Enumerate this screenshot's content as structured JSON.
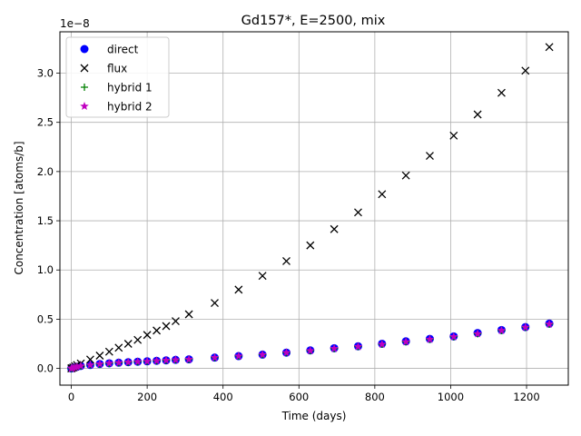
{
  "chart_data": {
    "type": "scatter",
    "title": "Gd157*, E=2500, mix",
    "xlabel": "Time (days)",
    "ylabel": "Concentration [atoms/b]",
    "y_offset_label": "1e−8",
    "xlim": [
      -30,
      1310
    ],
    "ylim": [
      -0.17,
      3.42
    ],
    "x_ticks": [
      0,
      200,
      400,
      600,
      800,
      1000,
      1200
    ],
    "y_ticks": [
      0.0,
      0.5,
      1.0,
      1.5,
      2.0,
      2.5,
      3.0
    ],
    "x_tick_labels": [
      "0",
      "200",
      "400",
      "600",
      "800",
      "1000",
      "1200"
    ],
    "y_tick_labels": [
      "0.0",
      "0.5",
      "1.0",
      "1.5",
      "2.0",
      "2.5",
      "3.0"
    ],
    "grid": true,
    "legend_position": "top-left",
    "x": [
      0,
      1,
      5,
      10,
      15,
      25,
      50,
      75,
      100,
      125,
      150,
      175,
      200,
      225,
      250,
      275,
      310,
      378,
      441,
      504,
      567,
      630,
      693,
      756,
      819,
      882,
      945,
      1008,
      1071,
      1134,
      1197,
      1260
    ],
    "series": [
      {
        "name": "direct",
        "marker": "circle",
        "color": "#0000ff",
        "values": [
          0.0,
          0.001,
          0.005,
          0.011,
          0.016,
          0.025,
          0.035,
          0.045,
          0.052,
          0.058,
          0.063,
          0.068,
          0.072,
          0.077,
          0.082,
          0.087,
          0.092,
          0.11,
          0.125,
          0.14,
          0.16,
          0.183,
          0.205,
          0.225,
          0.25,
          0.275,
          0.3,
          0.325,
          0.36,
          0.39,
          0.42,
          0.455
        ]
      },
      {
        "name": "flux",
        "marker": "x",
        "color": "#000000",
        "values": [
          0.0,
          0.002,
          0.01,
          0.022,
          0.035,
          0.05,
          0.09,
          0.13,
          0.17,
          0.21,
          0.25,
          0.29,
          0.34,
          0.385,
          0.43,
          0.48,
          0.55,
          0.665,
          0.8,
          0.94,
          1.09,
          1.25,
          1.415,
          1.585,
          1.77,
          1.96,
          2.16,
          2.365,
          2.58,
          2.8,
          3.025,
          3.265
        ]
      },
      {
        "name": "hybrid 1",
        "marker": "plus",
        "color": "#008000",
        "values": [
          0.0,
          0.001,
          0.005,
          0.011,
          0.016,
          0.025,
          0.035,
          0.045,
          0.052,
          0.058,
          0.063,
          0.068,
          0.072,
          0.077,
          0.082,
          0.087,
          0.092,
          0.11,
          0.125,
          0.14,
          0.16,
          0.18,
          0.202,
          0.222,
          0.245,
          0.27,
          0.295,
          0.322,
          0.352,
          0.385,
          0.418,
          0.45
        ]
      },
      {
        "name": "hybrid 2",
        "marker": "star",
        "color": "#c000c0",
        "values": [
          0.0,
          0.001,
          0.005,
          0.011,
          0.016,
          0.025,
          0.035,
          0.045,
          0.052,
          0.058,
          0.063,
          0.068,
          0.072,
          0.077,
          0.082,
          0.087,
          0.092,
          0.11,
          0.125,
          0.14,
          0.16,
          0.18,
          0.202,
          0.222,
          0.245,
          0.27,
          0.295,
          0.322,
          0.352,
          0.385,
          0.418,
          0.45
        ]
      }
    ]
  }
}
